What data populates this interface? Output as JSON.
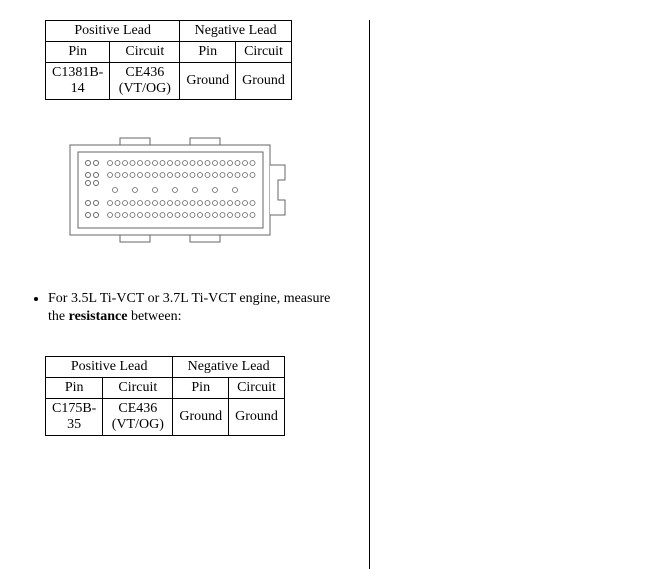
{
  "table1": {
    "positive_lead": "Positive Lead",
    "negative_lead": "Negative Lead",
    "pin_header": "Pin",
    "circuit_header": "Circuit",
    "row": {
      "pos_pin": "C1381B-14",
      "pos_circuit": "CE436 (VT/OG)",
      "neg_pin": "Ground",
      "neg_circuit": "Ground"
    }
  },
  "instruction": {
    "prefix": "For 3.5L Ti-VCT or 3.7L Ti-VCT engine, measure the ",
    "bold_word": "resistance",
    "suffix": " between:"
  },
  "table2": {
    "positive_lead": "Positive Lead",
    "negative_lead": "Negative Lead",
    "pin_header": "Pin",
    "circuit_header": "Circuit",
    "row": {
      "pos_pin": "C175B-35",
      "pos_circuit": "CE436 (VT/OG)",
      "neg_pin": "Ground",
      "neg_circuit": "Ground"
    }
  },
  "connector": {
    "colors": {
      "stroke": "#666666",
      "fill_bg": "#ffffff",
      "pin_fill": "#ffffff"
    }
  }
}
